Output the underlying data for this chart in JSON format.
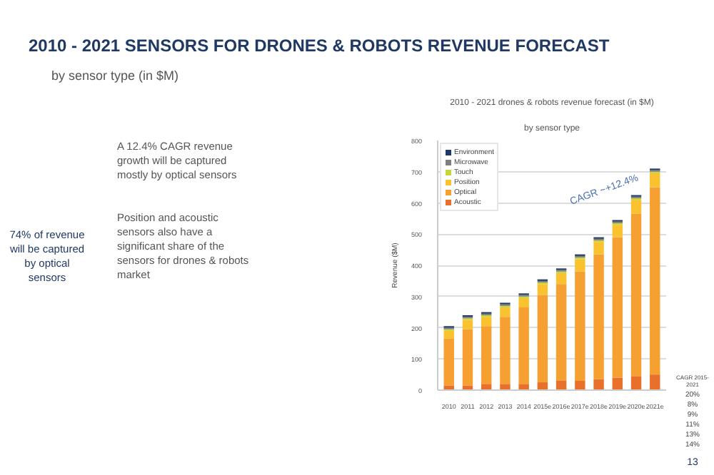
{
  "chart_data": {
    "type": "bar",
    "stacked": true,
    "title": "2010 - 2021 SENSORS FOR DRONES & ROBOTS REVENUE FORECAST",
    "subtitle": "by sensor type (in $M)",
    "ylabel": "Revenue ($M)",
    "categories": [
      "2010",
      "2011",
      "2012",
      "2013",
      "2014",
      "2015e",
      "2016e",
      "2017e",
      "2018e",
      "2019e",
      "2020e",
      "2021e"
    ],
    "series": [
      {
        "name": "Acoustic",
        "color": "#e8702a",
        "values": [
          15,
          15,
          20,
          20,
          20,
          25,
          30,
          30,
          35,
          40,
          45,
          50
        ]
      },
      {
        "name": "Optical",
        "color": "#f5a030",
        "values": [
          150,
          180,
          185,
          215,
          245,
          280,
          310,
          350,
          400,
          450,
          520,
          600
        ]
      },
      {
        "name": "Position",
        "color": "#f9c22e",
        "values": [
          25,
          30,
          30,
          30,
          30,
          35,
          35,
          40,
          40,
          40,
          45,
          45
        ]
      },
      {
        "name": "Touch",
        "color": "#c8d43c",
        "values": [
          5,
          5,
          5,
          5,
          5,
          5,
          5,
          5,
          5,
          5,
          5,
          5
        ]
      },
      {
        "name": "Microwave",
        "color": "#7f7f7f",
        "values": [
          5,
          5,
          5,
          5,
          5,
          5,
          5,
          5,
          5,
          5,
          5,
          5
        ]
      },
      {
        "name": "Environment",
        "color": "#1f3864",
        "values": [
          5,
          5,
          5,
          5,
          5,
          5,
          5,
          5,
          5,
          5,
          5,
          5
        ]
      }
    ],
    "ylim": [
      0,
      800
    ],
    "yticks": [
      0,
      100,
      200,
      300,
      400,
      500,
      600,
      700,
      800
    ],
    "grid": "y",
    "legend": "top left",
    "annotations": [
      "2010 - 2021 drones & robots revenue forecast (in $M)",
      "by sensor type",
      "A 12.4% CAGR revenue growth will be captured mostly by optical sensors",
      "Position and acoustic sensors also have a significant share of the sensors for drones & robots market",
      "74% of revenue will be captured by optical sensors",
      "CAGR ~+12.4%",
      "CAGR 2015-2021",
      "20%",
      "8%",
      "9%",
      "11%",
      "13%",
      "14%",
      "13"
    ]
  }
}
